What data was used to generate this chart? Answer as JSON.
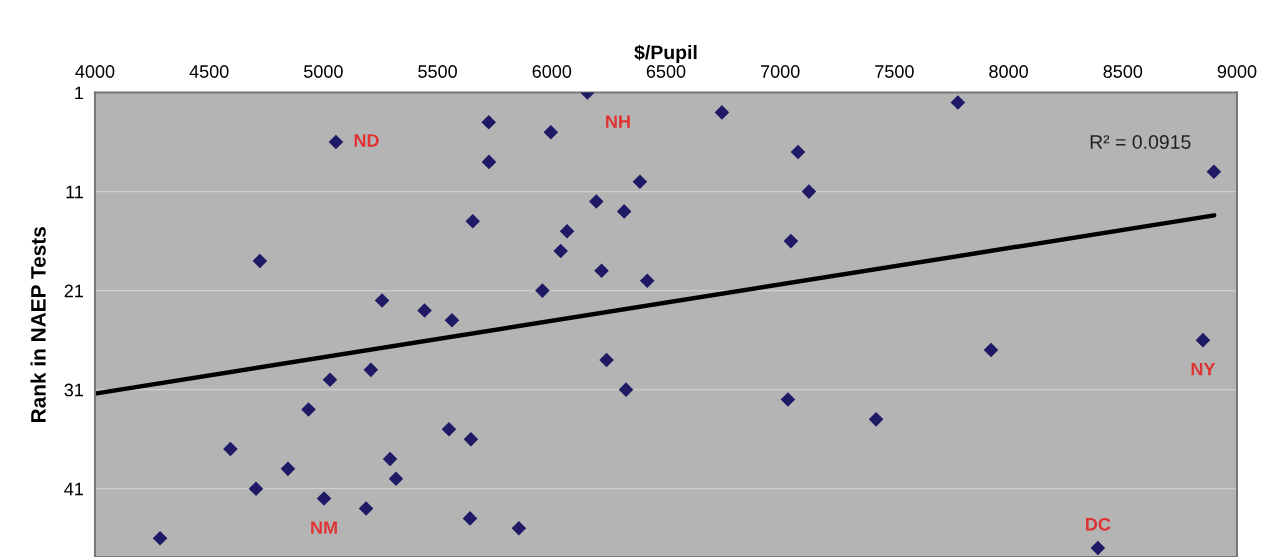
{
  "chart_data": {
    "type": "scatter",
    "xlabel": "$/Pupil",
    "ylabel": "Rank in NAEP Tests",
    "x": [
      6156,
      7778,
      6745,
      5724,
      5996,
      5055,
      7078,
      5725,
      8899,
      6386,
      7126,
      6195,
      6317,
      5654,
      6067,
      7047,
      6039,
      4722,
      6218,
      6418,
      5959,
      5257,
      5443,
      5563,
      8851,
      7923,
      6240,
      5208,
      5029,
      6325,
      7034,
      4935,
      7420,
      5550,
      5646,
      4593,
      5292,
      4845,
      5318,
      4705,
      5003,
      5187,
      5642,
      5856,
      4285,
      8391
    ],
    "series": [
      {
        "color": "#1f1a66",
        "marker": "diamond",
        "values": [
          1,
          2,
          3,
          4,
          5,
          6,
          7,
          8,
          9,
          10,
          11,
          12,
          13,
          14,
          15,
          16,
          17,
          18,
          19,
          20,
          21,
          22,
          23,
          24,
          26,
          27,
          28,
          29,
          30,
          31,
          32,
          33,
          34,
          35,
          36,
          37,
          38,
          39,
          40,
          41,
          42,
          43,
          44,
          45,
          46,
          47
        ]
      },
      {
        "type": "line",
        "color": "#000000",
        "marker": "none",
        "line_style": "solid",
        "x": [
          4000,
          8900
        ],
        "values": [
          31.4,
          13.4
        ]
      }
    ],
    "annotations": [
      {
        "text": "NH",
        "x": 6156,
        "y": 1
      },
      {
        "text": "ND",
        "x": 5055,
        "y": 6
      },
      {
        "text": "NY",
        "x": 8851,
        "y": 26
      },
      {
        "text": "NM",
        "x": 5003,
        "y": 42
      },
      {
        "text": "DC",
        "x": 8391,
        "y": 47
      },
      "R² = 0.0915"
    ],
    "xlim": [
      4000,
      9000
    ],
    "xticks": [
      4000,
      4500,
      5000,
      5500,
      6000,
      6500,
      7000,
      7500,
      8000,
      8500,
      9000
    ],
    "ylim": [
      47.9,
      1
    ],
    "yticks": [
      1,
      11,
      21,
      31,
      41
    ],
    "grid": "y",
    "legend": false
  }
}
